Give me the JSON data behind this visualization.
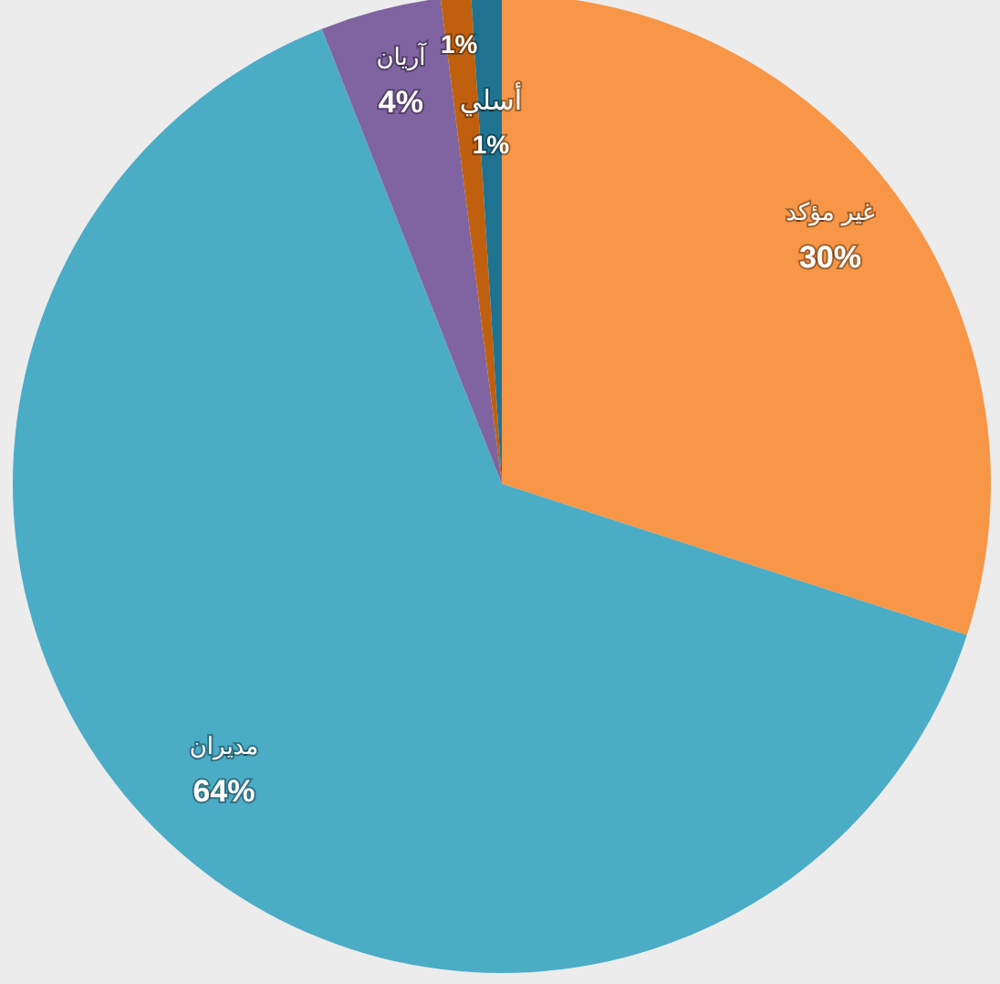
{
  "chart_data": {
    "type": "pie",
    "categories": [
      "غير مؤكد",
      "مديران",
      "آريان",
      null,
      "أسلي"
    ],
    "values": [
      30,
      64,
      4,
      1,
      1
    ],
    "colors": [
      "#f79646",
      "#4bacc6",
      "#8064a2",
      "#c0600f",
      "#1f7391"
    ],
    "value_labels": [
      "30%",
      "64%",
      "4%",
      "1%",
      "1%"
    ],
    "legend": false
  }
}
